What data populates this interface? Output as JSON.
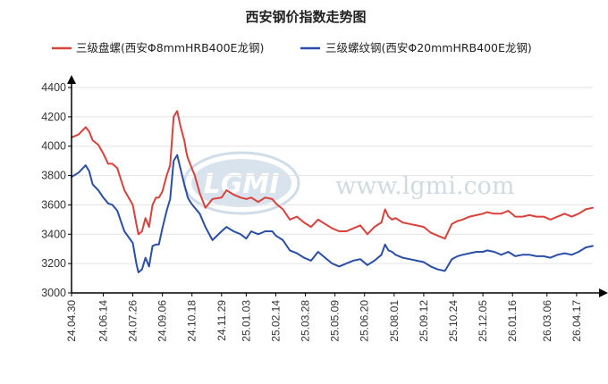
{
  "chart_data": {
    "type": "line",
    "title": "西安钢价指数走势图",
    "watermark": {
      "logo": "LGMI",
      "url": "www.lgmi.com"
    },
    "ylim": [
      3000,
      4400
    ],
    "yticks": [
      3000,
      3200,
      3400,
      3600,
      3800,
      4000,
      4200,
      4400
    ],
    "x_tick_labels": [
      "24.04.30",
      "24.06.14",
      "24.07.26",
      "24.09.06",
      "24.10.18",
      "24.11.29",
      "25.01.03",
      "25.02.14",
      "25.03.28",
      "25.05.09",
      "25.06.20",
      "25.08.01",
      "25.09.12",
      "25.10.24",
      "25.12.05",
      "26.01.16",
      "26.03.06",
      "26.04.17"
    ],
    "x_range": [
      0,
      740
    ],
    "x_tick_positions": [
      0,
      45,
      87,
      129,
      171,
      213,
      248,
      290,
      332,
      374,
      416,
      458,
      500,
      542,
      584,
      626,
      675,
      717
    ],
    "legend_position": "top",
    "grid": true,
    "colors": {
      "series1": "#d9413c",
      "series2": "#2b4fa6"
    },
    "series": [
      {
        "name": "三级盘螺(西安Φ8mmHRB400E龙钢)",
        "x": [
          0,
          10,
          20,
          25,
          30,
          38,
          45,
          52,
          58,
          65,
          75,
          87,
          92,
          95,
          100,
          105,
          110,
          115,
          120,
          124,
          129,
          135,
          140,
          145,
          150,
          155,
          160,
          163,
          165,
          170,
          175,
          182,
          190,
          200,
          213,
          220,
          230,
          240,
          248,
          255,
          265,
          275,
          285,
          290,
          300,
          310,
          320,
          330,
          340,
          350,
          360,
          370,
          380,
          390,
          400,
          410,
          420,
          430,
          440,
          445,
          450,
          455,
          460,
          470,
          480,
          490,
          500,
          510,
          520,
          530,
          540,
          548,
          555,
          565,
          575,
          584,
          590,
          600,
          610,
          620,
          630,
          640,
          650,
          660,
          670,
          680,
          690,
          700,
          710,
          720,
          730,
          740
        ],
        "values": [
          4060,
          4080,
          4130,
          4100,
          4040,
          4010,
          3950,
          3880,
          3880,
          3850,
          3700,
          3600,
          3470,
          3400,
          3420,
          3510,
          3450,
          3600,
          3650,
          3650,
          3690,
          3800,
          3870,
          4200,
          4240,
          4130,
          4040,
          3960,
          3920,
          3860,
          3800,
          3680,
          3580,
          3640,
          3650,
          3700,
          3670,
          3650,
          3640,
          3650,
          3620,
          3650,
          3640,
          3610,
          3570,
          3500,
          3520,
          3480,
          3450,
          3500,
          3470,
          3440,
          3420,
          3420,
          3440,
          3460,
          3400,
          3450,
          3480,
          3570,
          3520,
          3500,
          3510,
          3480,
          3470,
          3460,
          3450,
          3410,
          3390,
          3370,
          3470,
          3490,
          3500,
          3520,
          3530,
          3540,
          3550,
          3540,
          3540,
          3560,
          3520,
          3520,
          3530,
          3520,
          3520,
          3500,
          3520,
          3540,
          3520,
          3540,
          3570,
          3580
        ]
      },
      {
        "name": "三级螺纹钢(西安Φ20mmHRB400E龙钢)",
        "x": [
          0,
          10,
          20,
          25,
          30,
          38,
          45,
          52,
          58,
          65,
          75,
          87,
          92,
          95,
          100,
          105,
          110,
          115,
          120,
          124,
          129,
          135,
          140,
          145,
          150,
          155,
          160,
          163,
          165,
          170,
          175,
          182,
          190,
          200,
          213,
          220,
          230,
          240,
          248,
          255,
          265,
          275,
          285,
          290,
          300,
          310,
          320,
          330,
          340,
          350,
          360,
          370,
          380,
          390,
          400,
          410,
          420,
          430,
          440,
          445,
          450,
          455,
          460,
          470,
          480,
          490,
          500,
          510,
          520,
          530,
          540,
          548,
          555,
          565,
          575,
          584,
          590,
          600,
          610,
          620,
          630,
          640,
          650,
          660,
          670,
          680,
          690,
          700,
          710,
          720,
          730,
          740
        ],
        "values": [
          3790,
          3820,
          3870,
          3830,
          3740,
          3700,
          3650,
          3610,
          3600,
          3560,
          3420,
          3340,
          3200,
          3140,
          3160,
          3240,
          3180,
          3320,
          3330,
          3330,
          3440,
          3560,
          3640,
          3900,
          3940,
          3840,
          3740,
          3690,
          3650,
          3610,
          3580,
          3540,
          3450,
          3360,
          3420,
          3450,
          3420,
          3400,
          3370,
          3420,
          3400,
          3420,
          3420,
          3390,
          3360,
          3290,
          3270,
          3240,
          3220,
          3280,
          3240,
          3200,
          3180,
          3200,
          3220,
          3230,
          3190,
          3220,
          3260,
          3330,
          3290,
          3280,
          3260,
          3240,
          3230,
          3220,
          3210,
          3180,
          3160,
          3150,
          3230,
          3250,
          3260,
          3270,
          3280,
          3280,
          3290,
          3280,
          3260,
          3280,
          3250,
          3260,
          3260,
          3250,
          3250,
          3240,
          3260,
          3270,
          3260,
          3280,
          3310,
          3320
        ]
      }
    ]
  }
}
